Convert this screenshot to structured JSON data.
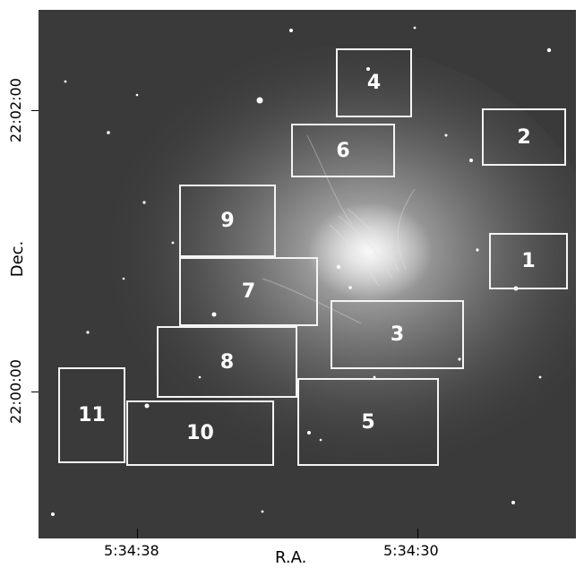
{
  "figure": {
    "x_axis_title": "R.A.",
    "y_axis_title": "Dec.",
    "x_ticks": [
      "5:34:38",
      "5:34:30"
    ],
    "y_ticks": [
      "22:02:00",
      "22:00:00"
    ],
    "fields": [
      {
        "id": "field-1",
        "label": "1"
      },
      {
        "id": "field-2",
        "label": "2"
      },
      {
        "id": "field-3",
        "label": "3"
      },
      {
        "id": "field-4",
        "label": "4"
      },
      {
        "id": "field-5",
        "label": "5"
      },
      {
        "id": "field-6",
        "label": "6"
      },
      {
        "id": "field-7",
        "label": "7"
      },
      {
        "id": "field-8",
        "label": "8"
      },
      {
        "id": "field-9",
        "label": "9"
      },
      {
        "id": "field-10",
        "label": "10"
      },
      {
        "id": "field-11",
        "label": "11"
      }
    ],
    "colors": {
      "background": "#3d3d3d",
      "nebula": "#bdbdbd",
      "box_outline": "#f4f4f4"
    }
  }
}
